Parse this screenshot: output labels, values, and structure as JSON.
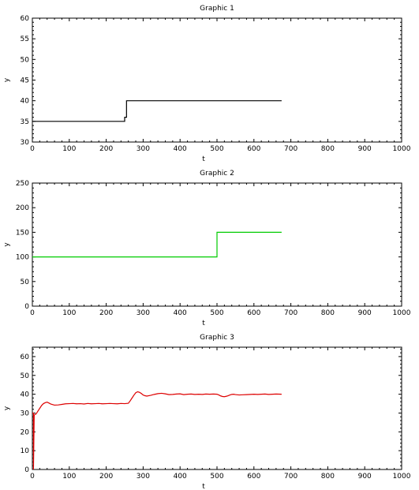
{
  "chart_data": [
    {
      "type": "line",
      "title": "Graphic 1",
      "xlabel": "t",
      "ylabel": "y",
      "xlim": [
        0,
        1000
      ],
      "ylim": [
        30,
        60
      ],
      "xticks": [
        0,
        100,
        200,
        300,
        400,
        500,
        600,
        700,
        800,
        900,
        1000
      ],
      "yticks": [
        30,
        35,
        40,
        45,
        50,
        55,
        60
      ],
      "grid": false,
      "series": [
        {
          "color": "#000000",
          "x": [
            0,
            250,
            250,
            255,
            255,
            675
          ],
          "y": [
            35,
            35,
            36,
            36,
            40,
            40
          ]
        }
      ]
    },
    {
      "type": "line",
      "title": "Graphic 2",
      "xlabel": "t",
      "ylabel": "y",
      "xlim": [
        0,
        1000
      ],
      "ylim": [
        0,
        250
      ],
      "xticks": [
        0,
        100,
        200,
        300,
        400,
        500,
        600,
        700,
        800,
        900,
        1000
      ],
      "yticks": [
        0,
        50,
        100,
        150,
        200,
        250
      ],
      "grid": false,
      "series": [
        {
          "color": "#00cc00",
          "x": [
            0,
            500,
            500,
            675
          ],
          "y": [
            100,
            100,
            150,
            150
          ]
        }
      ]
    },
    {
      "type": "line",
      "title": "Graphic 3",
      "xlabel": "t",
      "ylabel": "y",
      "xlim": [
        0,
        1000
      ],
      "ylim": [
        0,
        65
      ],
      "xticks": [
        0,
        100,
        200,
        300,
        400,
        500,
        600,
        700,
        800,
        900,
        1000
      ],
      "yticks": [
        0,
        10,
        20,
        30,
        40,
        50,
        60
      ],
      "grid": false,
      "series": [
        {
          "color": "#dd0000",
          "x": [
            0,
            3,
            3,
            5,
            10,
            15,
            20,
            25,
            30,
            35,
            40,
            45,
            50,
            60,
            70,
            80,
            90,
            100,
            110,
            120,
            130,
            140,
            150,
            160,
            170,
            180,
            190,
            200,
            210,
            220,
            230,
            240,
            250,
            260,
            265,
            270,
            275,
            280,
            285,
            290,
            295,
            300,
            305,
            310,
            320,
            330,
            340,
            350,
            360,
            370,
            380,
            390,
            400,
            410,
            420,
            430,
            440,
            450,
            460,
            470,
            480,
            490,
            500,
            505,
            510,
            515,
            520,
            525,
            530,
            535,
            540,
            545,
            550,
            560,
            570,
            580,
            590,
            600,
            610,
            620,
            630,
            640,
            650,
            660,
            675
          ],
          "y": [
            30,
            30,
            0,
            29,
            29.5,
            31,
            32.5,
            34,
            35,
            35.5,
            35.8,
            35.3,
            34.8,
            34.2,
            34.3,
            34.6,
            34.9,
            35,
            35.1,
            34.9,
            35,
            34.8,
            35.1,
            34.9,
            35,
            35.1,
            34.9,
            35,
            35.1,
            35,
            34.9,
            35.1,
            35,
            35.2,
            36.5,
            38,
            39.5,
            40.8,
            41.3,
            41,
            40.4,
            39.6,
            39.2,
            39,
            39.4,
            39.9,
            40.3,
            40.5,
            40.2,
            39.8,
            39.9,
            40.1,
            40.2,
            39.8,
            40,
            40.1,
            39.9,
            40,
            39.9,
            40.1,
            40,
            40.1,
            40,
            39.6,
            39.1,
            38.8,
            38.7,
            38.9,
            39.2,
            39.6,
            39.9,
            40,
            39.8,
            39.6,
            39.7,
            39.8,
            39.9,
            40,
            39.9,
            40,
            40.1,
            39.9,
            40,
            40.1,
            40
          ]
        }
      ]
    }
  ]
}
